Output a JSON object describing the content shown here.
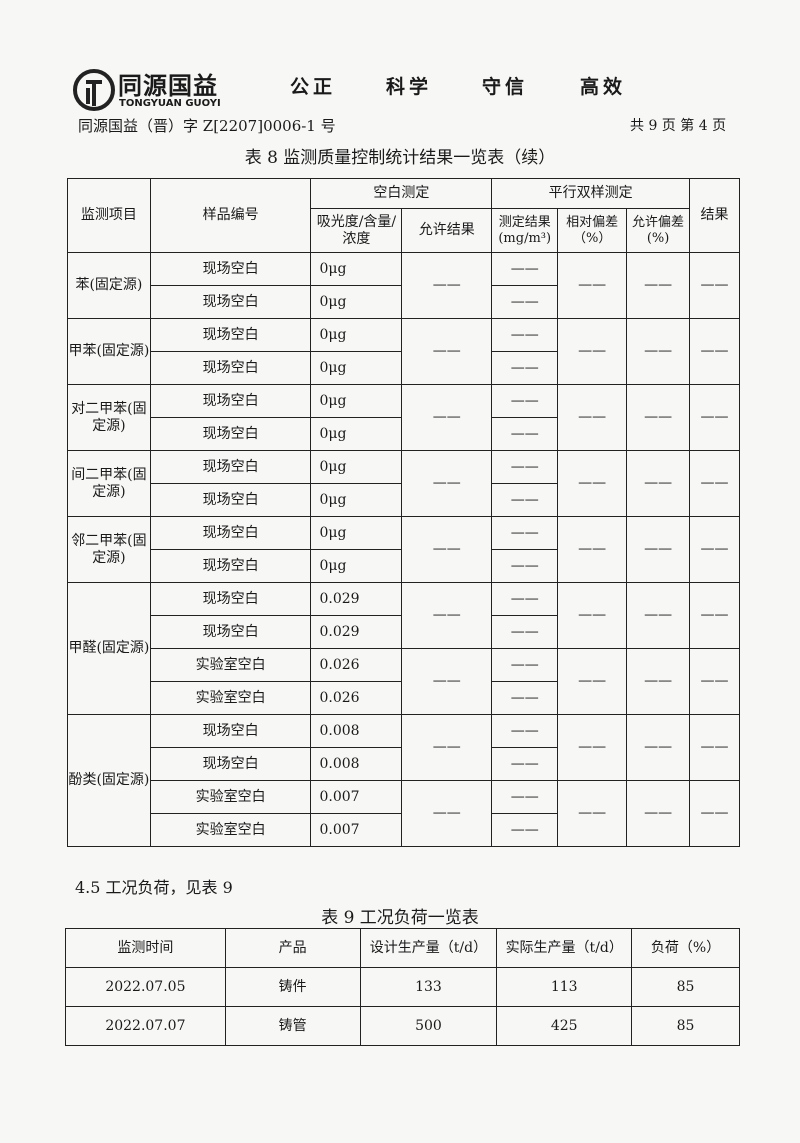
{
  "header": {
    "brand": "同源国益",
    "brand_en": "TONGYUAN GUOYI",
    "mottos": [
      "公正",
      "科学",
      "守信",
      "高效"
    ],
    "doc_number": "同源国益（晋）字 Z[2207]0006-1 号",
    "page_info": "共 9 页  第 4 页"
  },
  "table8": {
    "title": "表 8  监测质量控制统计结果一览表（续）",
    "headers": {
      "item": "监测项目",
      "sample": "样品编号",
      "blank": "空白测定",
      "blank_value": "吸光度/含量/浓度",
      "blank_allowed": "允许结果",
      "parallel": "平行双样测定",
      "measured": "测定结果(mg/m³)",
      "relative_dev": "相对偏差（%）",
      "allowed_dev": "允许偏差(%)",
      "result": "结果"
    },
    "dash": "——",
    "groups": [
      {
        "item": "苯(固定源)",
        "rows": [
          {
            "sample": "现场空白",
            "value": "0μg"
          },
          {
            "sample": "现场空白",
            "value": "0μg"
          }
        ]
      },
      {
        "item": "甲苯(固定源)",
        "rows": [
          {
            "sample": "现场空白",
            "value": "0μg"
          },
          {
            "sample": "现场空白",
            "value": "0μg"
          }
        ]
      },
      {
        "item": "对二甲苯(固定源)",
        "rows": [
          {
            "sample": "现场空白",
            "value": "0μg"
          },
          {
            "sample": "现场空白",
            "value": "0μg"
          }
        ]
      },
      {
        "item": "间二甲苯(固定源)",
        "rows": [
          {
            "sample": "现场空白",
            "value": "0μg"
          },
          {
            "sample": "现场空白",
            "value": "0μg"
          }
        ]
      },
      {
        "item": "邻二甲苯(固定源)",
        "rows": [
          {
            "sample": "现场空白",
            "value": "0μg"
          },
          {
            "sample": "现场空白",
            "value": "0μg"
          }
        ]
      },
      {
        "item": "甲醛(固定源)",
        "rows": [
          {
            "sample": "现场空白",
            "value": "0.029"
          },
          {
            "sample": "现场空白",
            "value": "0.029"
          },
          {
            "sample": "实验室空白",
            "value": "0.026"
          },
          {
            "sample": "实验室空白",
            "value": "0.026"
          }
        ]
      },
      {
        "item": "酚类(固定源)",
        "rows": [
          {
            "sample": "现场空白",
            "value": "0.008"
          },
          {
            "sample": "现场空白",
            "value": "0.008"
          },
          {
            "sample": "实验室空白",
            "value": "0.007"
          },
          {
            "sample": "实验室空白",
            "value": "0.007"
          }
        ]
      }
    ]
  },
  "section_4_5": "4.5 工况负荷，见表 9",
  "table9": {
    "title": "表 9  工况负荷一览表",
    "headers": [
      "监测时间",
      "产品",
      "设计生产量（t/d）",
      "实际生产量（t/d）",
      "负荷（%）"
    ],
    "rows": [
      [
        "2022.07.05",
        "铸件",
        "133",
        "113",
        "85"
      ],
      [
        "2022.07.07",
        "铸管",
        "500",
        "425",
        "85"
      ]
    ]
  }
}
